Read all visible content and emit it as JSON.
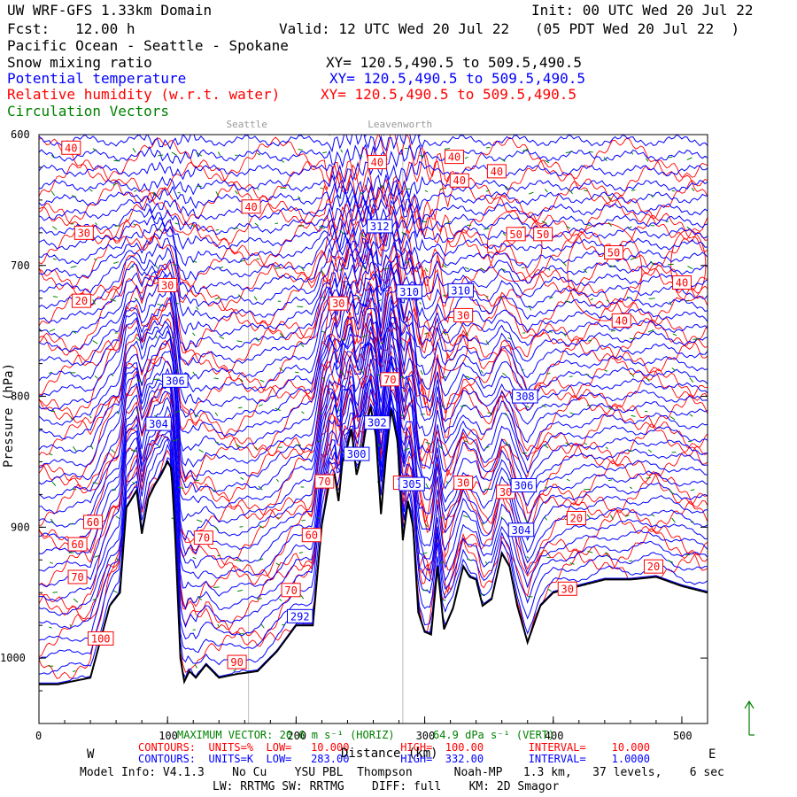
{
  "header": {
    "line1_left": "UW WRF-GFS 1.33km Domain",
    "line1_right": "Init: 00 UTC Wed 20 Jul 22",
    "line2_left": "Fcst:   12.00 h",
    "line2_right": "Valid: 12 UTC Wed 20 Jul 22   (05 PDT Wed 20 Jul 22  )",
    "line3": "Pacific Ocean - Seattle - Spokane",
    "field1": {
      "name": "Snow mixing ratio",
      "xy": "XY= 120.5,490.5 to 509.5,490.5",
      "color": "#000000"
    },
    "field2": {
      "name": "Potential temperature",
      "xy": "XY= 120.5,490.5 to 509.5,490.5",
      "color": "#0000ff"
    },
    "field3": {
      "name": "Relative humidity (w.r.t. water)",
      "xy": "XY= 120.5,490.5 to 509.5,490.5",
      "color": "#ff0000"
    },
    "field4": {
      "name": "Circulation Vectors",
      "color": "#008000"
    }
  },
  "locations": [
    "Seattle",
    "Leavenworth"
  ],
  "footer": {
    "max_vector": "MAXIMUM VECTOR: 20.6 m s⁻¹ (HORIZ)      64.9 dPa s⁻¹ (VERT)",
    "rh_contours": "CONTOURS:  UNITS=%  LOW=   10.000        HIGH=  100.00       INTERVAL=    10.000",
    "th_contours": "CONTOURS:  UNITS=K  LOW=   283.00        HIGH=  332.00       INTERVAL=    1.0000",
    "west": "W",
    "east": "E",
    "xlabel": "Distance (km)",
    "model1": "Model Info: V4.1.3    No Cu    YSU PBL  Thompson      Noah-MP   1.3 km,   37 levels,    6 sec",
    "model2": "LW: RRTMG SW: RRTMG    DIFF: full    KM: 2D Smagor"
  },
  "chart_data": {
    "type": "line",
    "title": "UW WRF-GFS 1.33km Domain",
    "xlabel": "Distance (km)",
    "ylabel": "Pressure (hPa)",
    "xlim": [
      0,
      520
    ],
    "ylim": [
      1050,
      600
    ],
    "x_ticks": [
      0,
      100,
      200,
      300,
      400,
      500
    ],
    "y_ticks": [
      600,
      700,
      800,
      900,
      1000
    ],
    "location_markers": [
      {
        "name": "Seattle",
        "x": 163
      },
      {
        "name": "Leavenworth",
        "x": 283
      }
    ],
    "terrain_color": "#000000",
    "theta_color": "#0000ff",
    "rh_color": "#ff0000",
    "vector_color": "#008000",
    "terrain": {
      "x": [
        0,
        15,
        40,
        55,
        63,
        68,
        76,
        80,
        85,
        90,
        95,
        100,
        103,
        106,
        110,
        113,
        117,
        122,
        130,
        140,
        155,
        170,
        185,
        200,
        213,
        220,
        226,
        230,
        233,
        236,
        240,
        243,
        247,
        251,
        255,
        258,
        262,
        266,
        270,
        274,
        279,
        283,
        287,
        291,
        295,
        300,
        305,
        310,
        315,
        322,
        330,
        335,
        340,
        345,
        352,
        360,
        366,
        372,
        380,
        390,
        400,
        420,
        440,
        460,
        480,
        500,
        520
      ],
      "p": [
        1020,
        1020,
        1015,
        960,
        950,
        885,
        872,
        905,
        878,
        868,
        860,
        850,
        855,
        908,
        1000,
        1018,
        1010,
        1015,
        1005,
        1015,
        1012,
        1010,
        995,
        975,
        975,
        898,
        865,
        860,
        880,
        850,
        838,
        825,
        860,
        845,
        820,
        808,
        830,
        890,
        845,
        810,
        835,
        910,
        880,
        900,
        965,
        980,
        982,
        930,
        978,
        962,
        930,
        938,
        940,
        960,
        955,
        920,
        930,
        960,
        988,
        960,
        950,
        945,
        940,
        940,
        938,
        945,
        950
      ]
    },
    "theta_contours": [
      {
        "label": "312",
        "x": 265,
        "p": 670
      },
      {
        "label": "310",
        "x": 288,
        "p": 720
      },
      {
        "label": "310",
        "x": 328,
        "p": 719
      },
      {
        "label": "308",
        "x": 378,
        "p": 800
      },
      {
        "label": "306",
        "x": 106,
        "p": 788
      },
      {
        "label": "304",
        "x": 93,
        "p": 821
      },
      {
        "label": "302",
        "x": 263,
        "p": 820
      },
      {
        "label": "300",
        "x": 247,
        "p": 844
      },
      {
        "label": "305",
        "x": 290,
        "p": 867
      },
      {
        "label": "306",
        "x": 377,
        "p": 868
      },
      {
        "label": "304",
        "x": 375,
        "p": 902
      },
      {
        "label": "292",
        "x": 203,
        "p": 968
      }
    ],
    "rh_contours": [
      {
        "label": "40",
        "x": 25,
        "p": 610
      },
      {
        "label": "40",
        "x": 165,
        "p": 655
      },
      {
        "label": "40",
        "x": 263,
        "p": 621
      },
      {
        "label": "40",
        "x": 323,
        "p": 617
      },
      {
        "label": "40",
        "x": 327,
        "p": 635
      },
      {
        "label": "40",
        "x": 356,
        "p": 628
      },
      {
        "label": "30",
        "x": 35,
        "p": 675
      },
      {
        "label": "50",
        "x": 371,
        "p": 676
      },
      {
        "label": "50",
        "x": 392,
        "p": 676
      },
      {
        "label": "50",
        "x": 447,
        "p": 690
      },
      {
        "label": "40",
        "x": 500,
        "p": 713
      },
      {
        "label": "40",
        "x": 453,
        "p": 742
      },
      {
        "label": "20",
        "x": 33,
        "p": 727
      },
      {
        "label": "30",
        "x": 100,
        "p": 715
      },
      {
        "label": "30",
        "x": 233,
        "p": 729
      },
      {
        "label": "30",
        "x": 330,
        "p": 738
      },
      {
        "label": "70",
        "x": 273,
        "p": 787
      },
      {
        "label": "30",
        "x": 330,
        "p": 866
      },
      {
        "label": "30",
        "x": 363,
        "p": 873
      },
      {
        "label": "20",
        "x": 418,
        "p": 893
      },
      {
        "label": "70",
        "x": 222,
        "p": 865
      },
      {
        "label": "70",
        "x": 283,
        "p": 866
      },
      {
        "label": "60",
        "x": 212,
        "p": 906
      },
      {
        "label": "70",
        "x": 128,
        "p": 908
      },
      {
        "label": "60",
        "x": 42,
        "p": 896
      },
      {
        "label": "60",
        "x": 30,
        "p": 913
      },
      {
        "label": "70",
        "x": 30,
        "p": 938
      },
      {
        "label": "70",
        "x": 196,
        "p": 948
      },
      {
        "label": "100",
        "x": 48,
        "p": 985
      },
      {
        "label": "90",
        "x": 154,
        "p": 1003
      },
      {
        "label": "30",
        "x": 411,
        "p": 947
      },
      {
        "label": "20",
        "x": 478,
        "p": 930
      }
    ],
    "theta_levels_bottom": 26,
    "rh_line_count": 24
  }
}
